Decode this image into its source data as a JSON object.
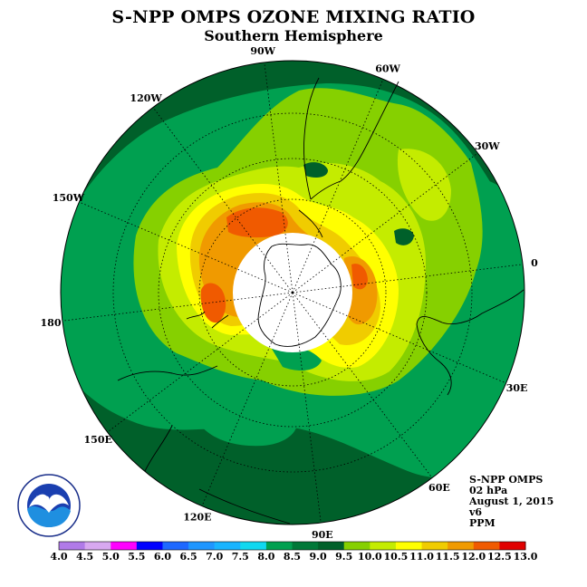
{
  "header": {
    "title": "S-NPP OMPS OZONE MIXING RATIO",
    "subtitle": "Southern Hemisphere"
  },
  "longitude_labels": [
    {
      "id": "lon-90w",
      "text": "90W"
    },
    {
      "id": "lon-60w",
      "text": "60W"
    },
    {
      "id": "lon-30w",
      "text": "30W"
    },
    {
      "id": "lon-0",
      "text": "0"
    },
    {
      "id": "lon-30e",
      "text": "30E"
    },
    {
      "id": "lon-60e",
      "text": "60E"
    },
    {
      "id": "lon-90e",
      "text": "90E"
    },
    {
      "id": "lon-120e",
      "text": "120E"
    },
    {
      "id": "lon-150e",
      "text": "150E"
    },
    {
      "id": "lon-180",
      "text": "180"
    },
    {
      "id": "lon-150w",
      "text": "150W"
    },
    {
      "id": "lon-120w",
      "text": "120W"
    }
  ],
  "info": {
    "instrument": "S-NPP OMPS",
    "level": "02 hPa",
    "date": "August 1, 2015",
    "version": "v6",
    "units": "PPM"
  },
  "logo": {
    "text": "NOAA",
    "ring_text": "NATIONAL OCEANIC AND ATMOSPHERIC ADMINISTRATION · U.S. DEPARTMENT OF COMMERCE"
  },
  "colorbar": {
    "ticks": [
      "4.0",
      "4.5",
      "5.0",
      "5.5",
      "6.0",
      "6.5",
      "7.0",
      "7.5",
      "8.0",
      "8.5",
      "9.0",
      "9.5",
      "10.0",
      "10.5",
      "11.0",
      "11.5",
      "12.0",
      "12.5",
      "13.0"
    ],
    "colors": [
      "#b07ae8",
      "#d8a8f0",
      "#ff00ff",
      "#0000ff",
      "#1e68ff",
      "#1e96ff",
      "#18b4ff",
      "#10d8f0",
      "#00a050",
      "#007838",
      "#00602a",
      "#86d000",
      "#c4ec00",
      "#ffff00",
      "#f0cc00",
      "#f09a00",
      "#f05a00",
      "#e00000",
      "#7a4a30"
    ]
  },
  "colors": {
    "ocean_dark_green": "#00602a",
    "green": "#00a050",
    "mid_green": "#007838",
    "lime": "#86d000",
    "yellow_green": "#c4ec00",
    "yellow": "#ffff00",
    "gold": "#f0cc00",
    "orange": "#f09a00",
    "red_orange": "#f05a00",
    "polar_night": "#ffffff"
  }
}
